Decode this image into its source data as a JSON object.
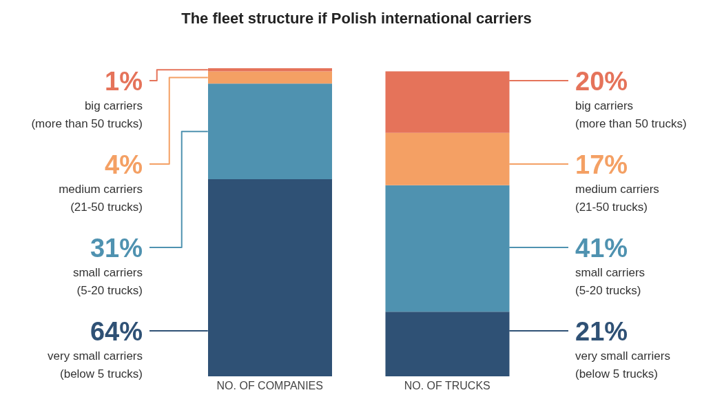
{
  "chart_data": {
    "type": "bar",
    "title": "The fleet structure if Polish international carriers",
    "categories": [
      "NO. OF COMPANIES",
      "NO. OF TRUCKS"
    ],
    "stacked": true,
    "ylim": [
      0,
      100
    ],
    "tick_labels": "x",
    "grid": false,
    "legend": false,
    "series": [
      {
        "name": "very small carriers (below 5 trucks)",
        "color": "#2f5175",
        "values": [
          64,
          21
        ],
        "value_labels": [
          "64%",
          "21%"
        ]
      },
      {
        "name": "small carriers (5-20 trucks)",
        "color": "#4f92b0",
        "values": [
          31,
          41
        ],
        "value_labels": [
          "31%",
          "41%"
        ]
      },
      {
        "name": "medium carriers (21-50 trucks)",
        "color": "#f4a064",
        "values": [
          4,
          17
        ],
        "value_labels": [
          "4%",
          "17%"
        ]
      },
      {
        "name": "big carriers (more than 50 trucks)",
        "color": "#e5735a",
        "values": [
          1,
          20
        ],
        "value_labels": [
          "1%",
          "20%"
        ]
      }
    ]
  }
}
